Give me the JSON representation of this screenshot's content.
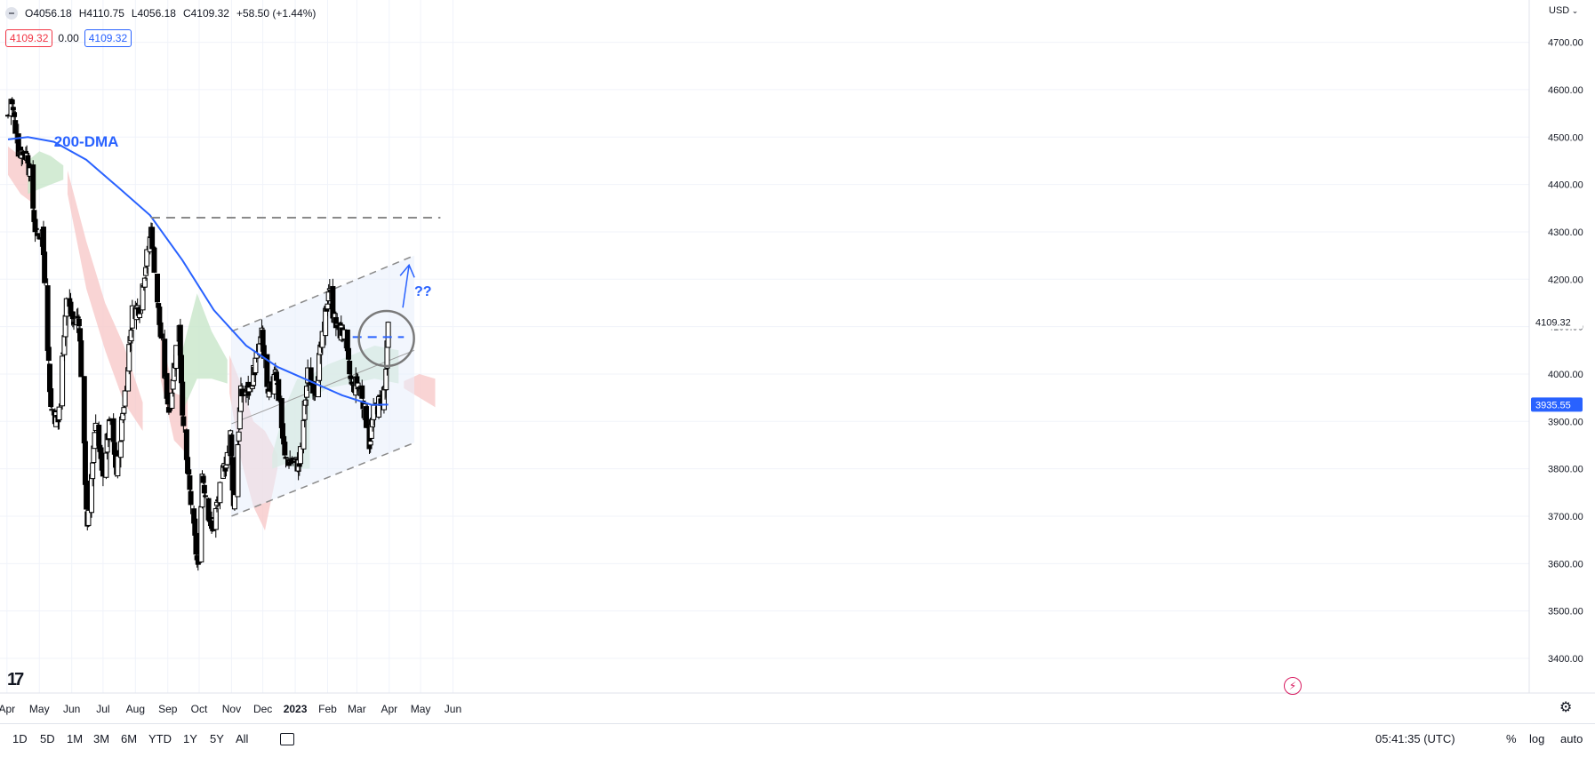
{
  "legend": {
    "open": "O4056.18",
    "high": "H4110.75",
    "low": "L4056.18",
    "close": "C4109.32",
    "change": "+58.50 (+1.44%)"
  },
  "price_boxes": {
    "left": "4109.32",
    "mid": "0.00",
    "right": "4109.32"
  },
  "currency": "USD",
  "time_display": "05:41:35 (UTC)",
  "ranges": [
    "1D",
    "5D",
    "1M",
    "3M",
    "6M",
    "YTD",
    "1Y",
    "5Y",
    "All"
  ],
  "right_tools": {
    "percent": "%",
    "log": "log",
    "auto": "auto"
  },
  "annotations": {
    "dma_label": "200-DMA",
    "question": "??"
  },
  "price_tags": {
    "last": "4109.32",
    "dma": "3935.55"
  },
  "colors": {
    "up": "#ffffff",
    "down": "#000000",
    "dma": "#2962ff",
    "cloud_bull": "#c8e6c9",
    "cloud_bear": "#f8c9c9",
    "channel": "#e8eefb"
  },
  "chart_data": {
    "type": "candlestick",
    "title": "",
    "ylim": [
      3350,
      4780
    ],
    "y_ticks": [
      3400,
      3500,
      3600,
      3700,
      3800,
      3900,
      4000,
      4100,
      4200,
      4300,
      4400,
      4500,
      4600,
      4700
    ],
    "x_ticks": [
      "Apr",
      "May",
      "Jun",
      "Jul",
      "Aug",
      "Sep",
      "Oct",
      "Nov",
      "Dec",
      "2023",
      "Feb",
      "Mar",
      "Apr",
      "May",
      "Jun"
    ],
    "close_anchors": [
      [
        "2022-04-01",
        4545
      ],
      [
        "2022-04-04",
        4582
      ],
      [
        "2022-04-11",
        4475
      ],
      [
        "2022-04-20",
        4460
      ],
      [
        "2022-04-28",
        4288
      ],
      [
        "2022-05-04",
        4300
      ],
      [
        "2022-05-12",
        3930
      ],
      [
        "2022-05-19",
        3900
      ],
      [
        "2022-05-27",
        4158
      ],
      [
        "2022-06-03",
        4108
      ],
      [
        "2022-06-08",
        4120
      ],
      [
        "2022-06-16",
        3666
      ],
      [
        "2022-06-24",
        3911
      ],
      [
        "2022-06-30",
        3785
      ],
      [
        "2022-07-08",
        3899
      ],
      [
        "2022-07-14",
        3790
      ],
      [
        "2022-07-22",
        3961
      ],
      [
        "2022-07-29",
        4130
      ],
      [
        "2022-08-05",
        4145
      ],
      [
        "2022-08-16",
        4305
      ],
      [
        "2022-08-26",
        4057
      ],
      [
        "2022-09-02",
        3924
      ],
      [
        "2022-09-12",
        4110
      ],
      [
        "2022-09-16",
        3873
      ],
      [
        "2022-09-30",
        3585
      ],
      [
        "2022-10-04",
        3790
      ],
      [
        "2022-10-13",
        3669
      ],
      [
        "2022-10-21",
        3752
      ],
      [
        "2022-10-31",
        3871
      ],
      [
        "2022-11-03",
        3720
      ],
      [
        "2022-11-10",
        3956
      ],
      [
        "2022-11-18",
        3965
      ],
      [
        "2022-11-30",
        4080
      ],
      [
        "2022-12-06",
        3941
      ],
      [
        "2022-12-13",
        4019
      ],
      [
        "2022-12-22",
        3822
      ],
      [
        "2023-01-05",
        3808
      ],
      [
        "2023-01-13",
        3999
      ],
      [
        "2023-01-20",
        3972
      ],
      [
        "2023-01-27",
        4070
      ],
      [
        "2023-02-02",
        4179
      ],
      [
        "2023-02-10",
        4090
      ],
      [
        "2023-02-16",
        4090
      ],
      [
        "2023-02-24",
        3970
      ],
      [
        "2023-03-02",
        3981
      ],
      [
        "2023-03-09",
        3918
      ],
      [
        "2023-03-13",
        3855
      ],
      [
        "2023-03-17",
        3916
      ],
      [
        "2023-03-22",
        3937
      ],
      [
        "2023-03-28",
        3971
      ],
      [
        "2023-03-30",
        4051
      ],
      [
        "2023-03-31",
        4109
      ]
    ],
    "last_candle": {
      "date": "2023-03-31",
      "open": 4056.18,
      "high": 4110.75,
      "low": 4056.18,
      "close": 4109.32
    },
    "dma_200": [
      [
        "2022-04-01",
        4495
      ],
      [
        "2022-04-20",
        4500
      ],
      [
        "2022-05-15",
        4490
      ],
      [
        "2022-06-15",
        4452
      ],
      [
        "2022-07-15",
        4395
      ],
      [
        "2022-08-15",
        4335
      ],
      [
        "2022-09-15",
        4240
      ],
      [
        "2022-10-15",
        4135
      ],
      [
        "2022-11-15",
        4060
      ],
      [
        "2022-12-15",
        4015
      ],
      [
        "2023-01-15",
        3985
      ],
      [
        "2023-02-15",
        3955
      ],
      [
        "2023-03-15",
        3935
      ],
      [
        "2023-03-31",
        3935.55
      ]
    ],
    "resistance_line": {
      "start": "2022-08-16",
      "end": "2023-05-20",
      "value": 4330
    },
    "breakout_line": {
      "start": "2023-02-25",
      "end": "2023-04-15",
      "value": 4078
    },
    "channel": {
      "upper": [
        [
          "2022-11-01",
          4090
        ],
        [
          "2023-04-25",
          4250
        ]
      ],
      "lower": [
        [
          "2022-11-01",
          3700
        ],
        [
          "2023-04-25",
          3855
        ]
      ],
      "mid": [
        [
          "2022-11-01",
          3895
        ],
        [
          "2023-04-25",
          4050
        ]
      ]
    },
    "ichimoku_bear": [
      {
        "start": "2022-04-01",
        "end": "2022-04-25",
        "top": [
          4480,
          4460,
          4430
        ],
        "bottom": [
          4420,
          4380,
          4360
        ]
      },
      {
        "start": "2022-05-28",
        "end": "2022-08-08",
        "top": [
          4430,
          4280,
          4150,
          4060,
          3940
        ],
        "bottom": [
          4380,
          4180,
          4050,
          3940,
          3880
        ]
      },
      {
        "start": "2022-08-25",
        "end": "2022-09-20",
        "top": [
          4090,
          3960,
          3950
        ],
        "bottom": [
          3990,
          3860,
          3830
        ]
      },
      {
        "start": "2022-10-30",
        "end": "2022-12-15",
        "top": [
          4040,
          3980,
          3900,
          3880,
          3830
        ],
        "bottom": [
          3960,
          3820,
          3720,
          3670,
          3800
        ]
      },
      {
        "start": "2023-04-15",
        "end": "2023-05-15",
        "top": [
          3985,
          4000,
          3990
        ],
        "bottom": [
          3970,
          3950,
          3930
        ]
      }
    ],
    "ichimoku_bull": [
      {
        "start": "2022-04-20",
        "end": "2022-05-24",
        "top": [
          4450,
          4470,
          4460,
          4440
        ],
        "bottom": [
          4380,
          4390,
          4400,
          4410
        ]
      },
      {
        "start": "2022-09-15",
        "end": "2022-10-28",
        "top": [
          4050,
          4170,
          4090,
          4030
        ],
        "bottom": [
          3920,
          3990,
          3990,
          3980
        ]
      },
      {
        "start": "2022-12-10",
        "end": "2023-01-15",
        "top": [
          3830,
          3930,
          3990,
          3990
        ],
        "bottom": [
          3800,
          3810,
          3800,
          3800
        ]
      },
      {
        "start": "2023-01-10",
        "end": "2023-04-10",
        "top": [
          3990,
          4020,
          4040,
          4060,
          4050
        ],
        "bottom": [
          3940,
          3970,
          3980,
          3990,
          3980
        ]
      }
    ]
  }
}
